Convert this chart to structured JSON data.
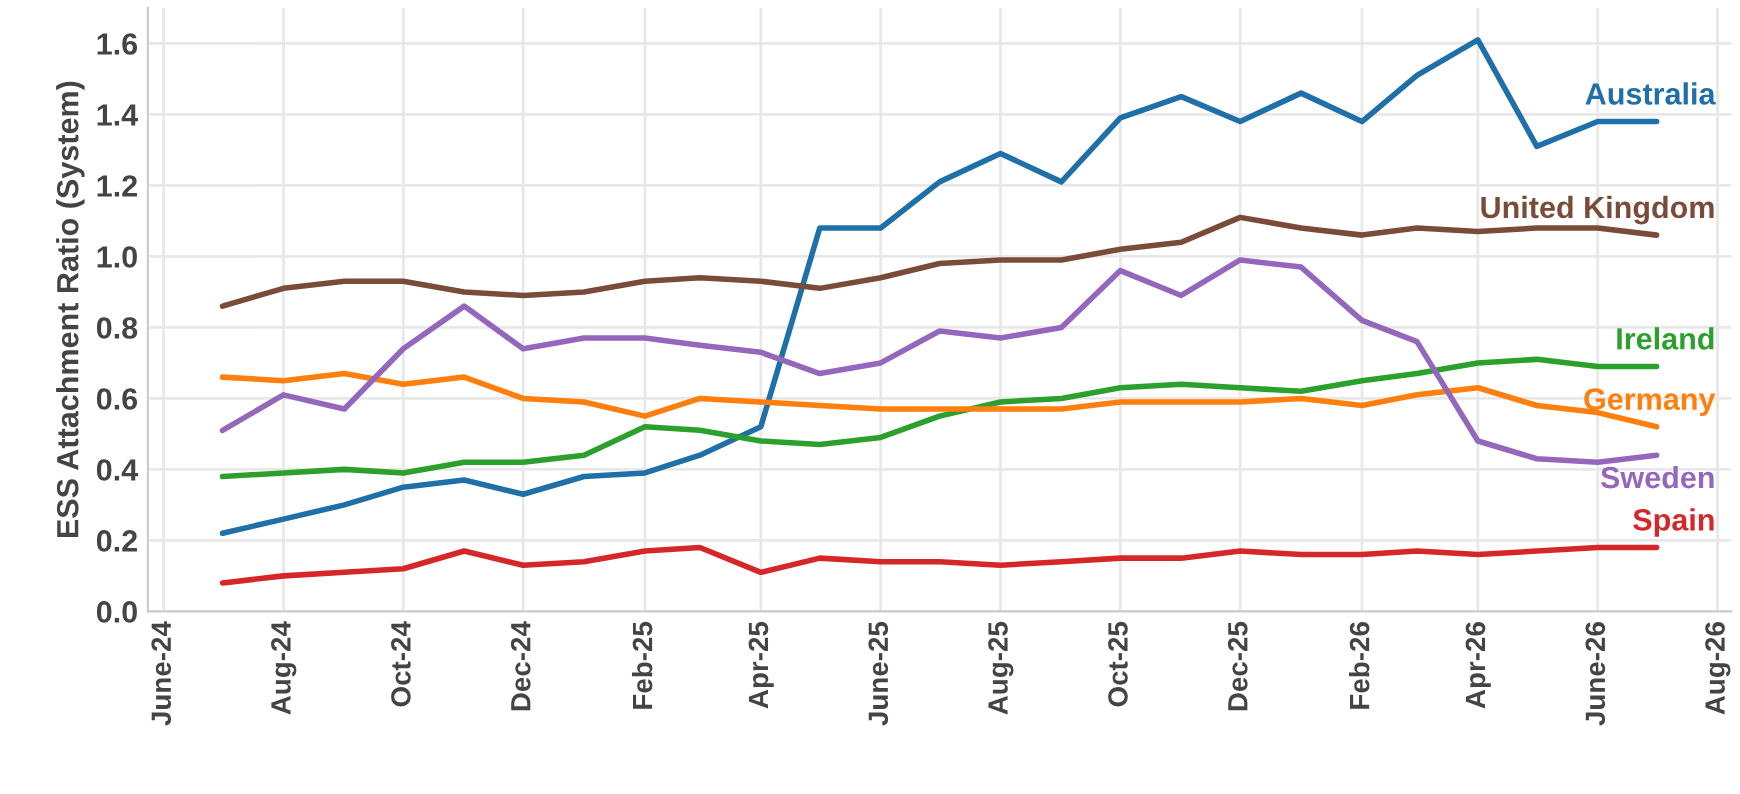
{
  "chart_data": {
    "type": "line",
    "ylabel": "ESS Attachment Ratio (System)",
    "x": [
      "2024-07",
      "2024-08",
      "2024-09",
      "2024-10",
      "2024-11",
      "2024-12",
      "2025-01",
      "2025-02",
      "2025-03",
      "2025-04",
      "2025-05",
      "2025-06",
      "2025-07",
      "2025-08",
      "2025-09",
      "2025-10",
      "2025-11",
      "2025-12",
      "2026-01",
      "2026-02",
      "2026-03",
      "2026-04",
      "2026-05",
      "2026-06",
      "2026-07"
    ],
    "series": [
      {
        "name": "Australia",
        "color": "#1f6fa8",
        "values": [
          0.22,
          0.26,
          0.3,
          0.35,
          0.37,
          0.33,
          0.38,
          0.39,
          0.44,
          0.52,
          1.08,
          1.08,
          1.21,
          1.29,
          1.21,
          1.39,
          1.45,
          1.38,
          1.46,
          1.38,
          1.51,
          1.61,
          1.31,
          1.38,
          1.38
        ]
      },
      {
        "name": "United Kingdom",
        "color": "#7b4b3a",
        "values": [
          0.86,
          0.91,
          0.93,
          0.93,
          0.9,
          0.89,
          0.9,
          0.93,
          0.94,
          0.93,
          0.91,
          0.94,
          0.98,
          0.99,
          0.99,
          1.02,
          1.04,
          1.11,
          1.08,
          1.06,
          1.08,
          1.07,
          1.08,
          1.08,
          1.06
        ]
      },
      {
        "name": "Ireland",
        "color": "#2ca02c",
        "values": [
          0.38,
          0.39,
          0.4,
          0.39,
          0.42,
          0.42,
          0.44,
          0.52,
          0.51,
          0.48,
          0.47,
          0.49,
          0.55,
          0.59,
          0.6,
          0.63,
          0.64,
          0.63,
          0.62,
          0.65,
          0.67,
          0.7,
          0.71,
          0.69,
          0.69
        ]
      },
      {
        "name": "Germany",
        "color": "#ff7f0e",
        "values": [
          0.66,
          0.65,
          0.67,
          0.64,
          0.66,
          0.6,
          0.59,
          0.55,
          0.6,
          0.59,
          0.58,
          0.57,
          0.57,
          0.57,
          0.57,
          0.59,
          0.59,
          0.59,
          0.6,
          0.58,
          0.61,
          0.63,
          0.58,
          0.56,
          0.52
        ]
      },
      {
        "name": "Sweden",
        "color": "#9467bd",
        "values": [
          0.51,
          0.61,
          0.57,
          0.74,
          0.86,
          0.74,
          0.77,
          0.77,
          0.75,
          0.73,
          0.67,
          0.7,
          0.79,
          0.77,
          0.8,
          0.96,
          0.89,
          0.99,
          0.97,
          0.82,
          0.76,
          0.48,
          0.43,
          0.42,
          0.44
        ]
      },
      {
        "name": "Spain",
        "color": "#d62728",
        "values": [
          0.08,
          0.1,
          0.11,
          0.12,
          0.17,
          0.13,
          0.14,
          0.17,
          0.18,
          0.11,
          0.15,
          0.14,
          0.14,
          0.13,
          0.14,
          0.15,
          0.15,
          0.17,
          0.16,
          0.16,
          0.17,
          0.16,
          0.17,
          0.18,
          0.18
        ]
      }
    ],
    "xlim": [
      "2024-05-24",
      "2026-08-08"
    ],
    "xticks": [
      {
        "value": "2024-06-01",
        "label": "June-24"
      },
      {
        "value": "2024-08-01",
        "label": "Aug-24"
      },
      {
        "value": "2024-10-01",
        "label": "Oct-24"
      },
      {
        "value": "2024-12-01",
        "label": "Dec-24"
      },
      {
        "value": "2025-02-01",
        "label": "Feb-25"
      },
      {
        "value": "2025-04-01",
        "label": "Apr-25"
      },
      {
        "value": "2025-06-01",
        "label": "June-25"
      },
      {
        "value": "2025-08-01",
        "label": "Aug-25"
      },
      {
        "value": "2025-10-01",
        "label": "Oct-25"
      },
      {
        "value": "2025-12-01",
        "label": "Dec-25"
      },
      {
        "value": "2026-02-01",
        "label": "Feb-26"
      },
      {
        "value": "2026-04-01",
        "label": "Apr-26"
      },
      {
        "value": "2026-06-01",
        "label": "June-26"
      },
      {
        "value": "2026-08-01",
        "label": "Aug-26"
      }
    ],
    "ylim": [
      0,
      1.7
    ],
    "yticks": [
      {
        "value": 0,
        "label": "0.0"
      },
      0.2,
      0.4,
      0.6,
      0.8,
      {
        "value": 1,
        "label": "1.0"
      },
      1.2,
      1.4,
      1.6
    ],
    "grid": true,
    "legend": false,
    "marker": "none",
    "line_style": "solid"
  }
}
